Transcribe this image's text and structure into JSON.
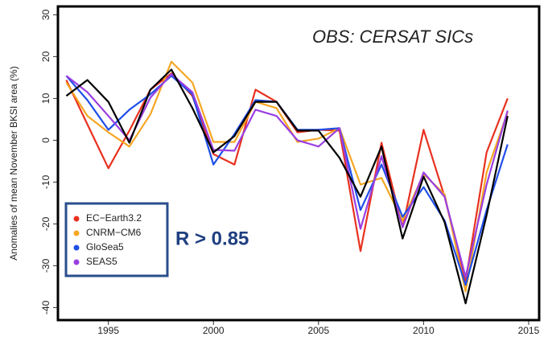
{
  "chart_data": {
    "type": "line",
    "y_label": "Anomalies of mean November BKSI area (%)",
    "annotation": "OBS: CERSAT SICs",
    "note": "R > 0.85",
    "x": [
      1993,
      1994,
      1995,
      1996,
      1997,
      1998,
      1999,
      2000,
      2001,
      2002,
      2003,
      2004,
      2005,
      2006,
      2007,
      2008,
      2009,
      2010,
      2011,
      2012,
      2013,
      2014
    ],
    "observed": {
      "color": "#000000",
      "values": [
        10.6,
        14.4,
        9.2,
        -0.6,
        12.1,
        16.9,
        7.7,
        -2.9,
        1,
        9.2,
        9.2,
        2.3,
        2.3,
        -4.2,
        -13.5,
        -1.5,
        -23.5,
        -8.7,
        -19.6,
        -39,
        -17.9,
        5.8
      ]
    },
    "series": [
      {
        "name": "EC−Earth3.2",
        "color": "#e8311f",
        "values": [
          14.4,
          3.8,
          -6.7,
          2.3,
          12.1,
          16,
          10.6,
          -3.3,
          -5.8,
          12.1,
          9.2,
          1.9,
          2.5,
          2.3,
          -26.5,
          -0.6,
          -20.8,
          2.5,
          -13.5,
          -33.7,
          -2.9,
          10
        ]
      },
      {
        "name": "CNRM−CM6",
        "color": "#f5a623",
        "values": [
          13.8,
          5.8,
          1.9,
          -1.5,
          6.2,
          18.8,
          13.8,
          -0.4,
          -0.4,
          9.2,
          7.7,
          -0.4,
          0.4,
          2.9,
          -10.6,
          -9,
          -19.2,
          -8.1,
          -12.9,
          -36.2,
          -7.7,
          6.7
        ]
      },
      {
        "name": "GloSea5",
        "color": "#1f4ee8",
        "values": [
          15.4,
          9.6,
          2.5,
          7.3,
          11,
          15.4,
          11,
          -5.8,
          1.5,
          9.6,
          9.2,
          2.5,
          2.5,
          2.9,
          -16.7,
          -5.8,
          -18.3,
          -11.2,
          -19.2,
          -34.6,
          -16.7,
          -1
        ]
      },
      {
        "name": "SEAS5",
        "color": "#9a3fe0",
        "values": [
          15.4,
          11.5,
          5.8,
          0,
          10.2,
          15.8,
          11.5,
          -2.3,
          -2.5,
          7.3,
          5.8,
          0,
          -1.5,
          2.9,
          -21.2,
          -3.8,
          -20.8,
          -7.7,
          -13.5,
          -32.7,
          -10.6,
          7.1
        ]
      }
    ],
    "xlim": [
      1992.6,
      2015.5
    ],
    "xticks": [
      1995,
      2000,
      2005,
      2010,
      2015
    ],
    "ylim": [
      -43,
      32
    ],
    "yticks": [
      -40,
      -30,
      -20,
      -10,
      0,
      10,
      20,
      30
    ]
  }
}
